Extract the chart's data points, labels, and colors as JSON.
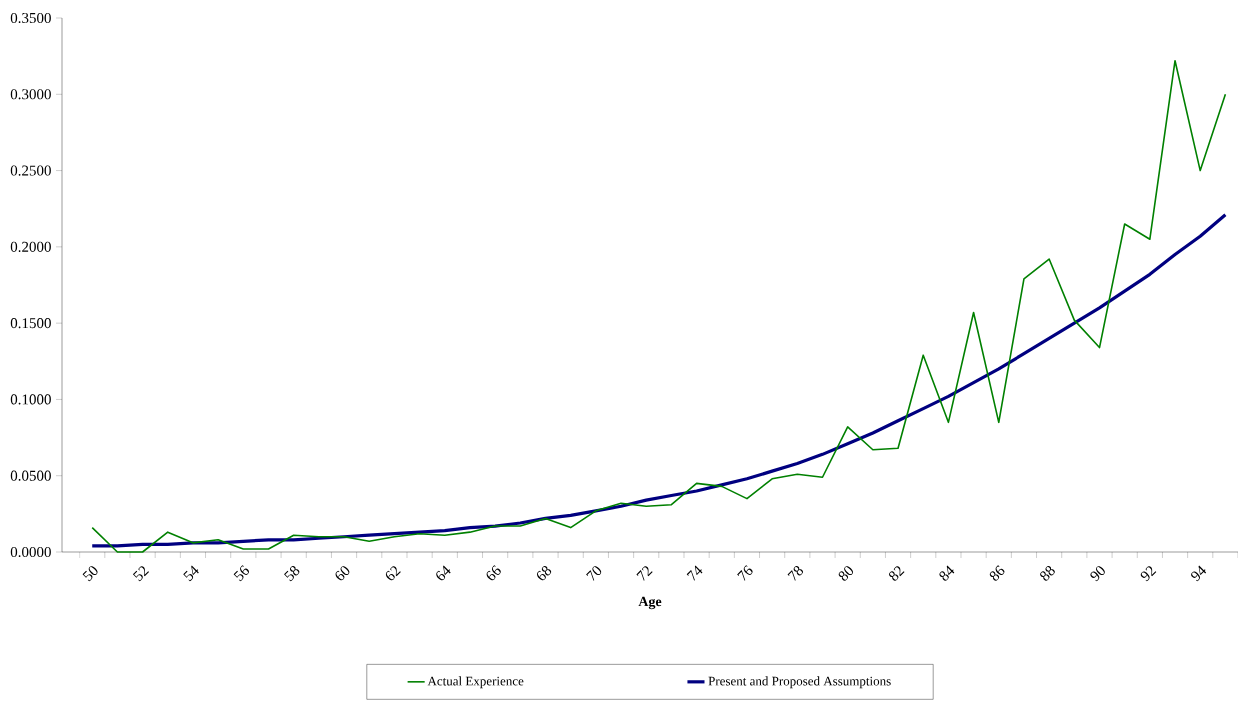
{
  "chart_data": {
    "type": "line",
    "xlabel": "Age",
    "categories": [
      "50",
      null,
      "52",
      null,
      "54",
      null,
      "56",
      null,
      "58",
      null,
      "60",
      null,
      "62",
      null,
      "64",
      null,
      "66",
      null,
      "68",
      null,
      "70",
      null,
      "72",
      null,
      "74",
      null,
      "76",
      null,
      "78",
      null,
      "80",
      null,
      "82",
      null,
      "84",
      null,
      "86",
      null,
      "88",
      null,
      "90",
      null,
      "92",
      null,
      "94",
      null
    ],
    "series": [
      {
        "name": "Actual Experience",
        "color": "#008000",
        "values": [
          0.016,
          0.0,
          0.0,
          0.013,
          0.006,
          0.008,
          0.002,
          0.002,
          0.011,
          0.01,
          0.01,
          0.007,
          0.01,
          0.012,
          0.011,
          0.013,
          0.017,
          0.017,
          0.022,
          0.016,
          0.027,
          0.032,
          0.03,
          0.031,
          0.045,
          0.043,
          0.035,
          0.048,
          0.051,
          0.049,
          0.082,
          0.067,
          0.068,
          0.129,
          0.085,
          0.157,
          0.085,
          0.179,
          0.192,
          0.152,
          0.134,
          0.215,
          0.205,
          0.322,
          0.25,
          0.3
        ]
      },
      {
        "name": "Present and Proposed Assumptions",
        "color": "#000080",
        "values": [
          0.004,
          0.004,
          0.005,
          0.005,
          0.006,
          0.006,
          0.007,
          0.008,
          0.008,
          0.009,
          0.01,
          0.011,
          0.012,
          0.013,
          0.014,
          0.016,
          0.017,
          0.019,
          0.022,
          0.024,
          0.027,
          0.03,
          0.034,
          0.037,
          0.04,
          0.044,
          0.048,
          0.053,
          0.058,
          0.064,
          0.071,
          0.078,
          0.086,
          0.094,
          0.102,
          0.111,
          0.12,
          0.13,
          0.14,
          0.15,
          0.16,
          0.171,
          0.182,
          0.195,
          0.207,
          0.221
        ]
      }
    ],
    "ylim": [
      0,
      0.35
    ],
    "yticks": [
      {
        "value": 0,
        "label": "0.0000"
      },
      {
        "value": 0.05,
        "label": "0.0500"
      },
      {
        "value": 0.1,
        "label": "0.1000"
      },
      {
        "value": 0.15,
        "label": "0.1500"
      },
      {
        "value": 0.2,
        "label": "0.2000"
      },
      {
        "value": 0.25,
        "label": "0.2500"
      },
      {
        "value": 0.3,
        "label": "0.3000"
      },
      {
        "value": 0.35,
        "label": "0.3500"
      }
    ],
    "grid": false,
    "legend": "bottom",
    "marker": "none",
    "line_style": "solid"
  }
}
